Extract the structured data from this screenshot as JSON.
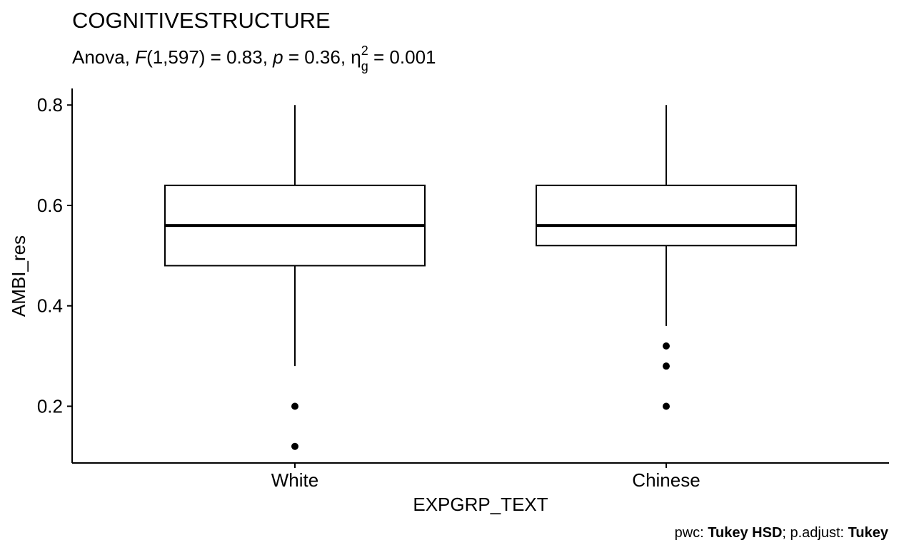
{
  "chart_data": {
    "type": "box",
    "title": "COGNITIVESTRUCTURE",
    "subtitle": {
      "prefix": "Anova, ",
      "stat_symbol": "F",
      "df": "(1,597)",
      "stat_value": " = 0.83, ",
      "p_symbol": "p",
      "p_value": " = 0.36, ",
      "effect_symbol": "η",
      "effect_subscript": "g",
      "effect_superscript": "2",
      "effect_value": " = 0.001"
    },
    "xlabel": "EXPGRP_TEXT",
    "ylabel": "AMBI_res",
    "categories": [
      "White",
      "Chinese"
    ],
    "ylim": [
      0.087,
      0.833
    ],
    "yticks": [
      0.2,
      0.4,
      0.6,
      0.8
    ],
    "ytick_labels": [
      "0.2",
      "0.4",
      "0.6",
      "0.8"
    ],
    "boxes": [
      {
        "category": "White",
        "whisker_low": 0.28,
        "q1": 0.48,
        "median": 0.56,
        "q3": 0.64,
        "whisker_high": 0.8,
        "outliers": [
          0.2,
          0.12
        ]
      },
      {
        "category": "Chinese",
        "whisker_low": 0.36,
        "q1": 0.52,
        "median": 0.56,
        "q3": 0.64,
        "whisker_high": 0.8,
        "outliers": [
          0.32,
          0.28,
          0.2
        ]
      }
    ],
    "caption": {
      "pwc_label": "pwc: ",
      "pwc_value": "Tukey HSD",
      "separator": "; p.adjust: ",
      "adjust_value": "Tukey"
    },
    "grid": false,
    "legend": "none"
  }
}
